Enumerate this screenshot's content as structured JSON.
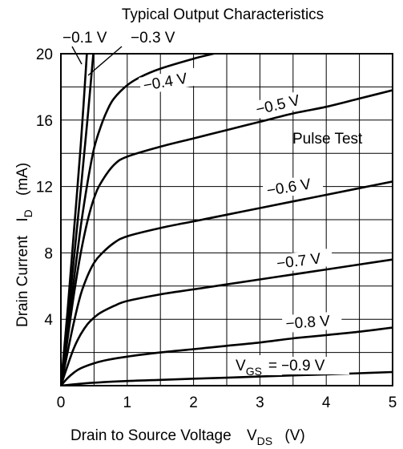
{
  "chart_data": {
    "type": "line",
    "title": "Typical Output Characteristics",
    "xlabel": "Drain to Source Voltage",
    "xlabel_symbol": "V",
    "xlabel_symbol_sub": "DS",
    "xlabel_unit": "(V)",
    "ylabel": "Drain Current",
    "ylabel_symbol": "I",
    "ylabel_symbol_sub": "D",
    "ylabel_unit": "(mA)",
    "xlim": [
      0,
      5
    ],
    "ylim": [
      0,
      20
    ],
    "x_ticks": [
      "0",
      "1",
      "2",
      "3",
      "4",
      "5"
    ],
    "y_ticks": [
      "4",
      "8",
      "12",
      "16",
      "20"
    ],
    "grid": true,
    "annotation": "Pulse Test",
    "gate_label_prefix": "V",
    "gate_label_sub": "GS",
    "gate_label_eq": "=",
    "series": [
      {
        "name": "−0.1 V",
        "x": [
          0,
          0.1,
          0.2,
          0.3,
          0.4
        ],
        "y": [
          0,
          4.5,
          9.5,
          14.5,
          20.5
        ]
      },
      {
        "name": "−0.3 V",
        "x": [
          0,
          0.1,
          0.2,
          0.3,
          0.4,
          0.5
        ],
        "y": [
          0,
          3.8,
          7.8,
          11.8,
          16.0,
          20.5
        ]
      },
      {
        "name": "−0.4 V",
        "x": [
          0,
          0.1,
          0.2,
          0.3,
          0.4,
          0.5,
          0.6,
          0.7,
          0.8,
          1.0,
          1.2,
          1.5,
          2.0,
          2.3
        ],
        "y": [
          0,
          3.2,
          6.5,
          9.6,
          12.2,
          14.3,
          15.6,
          16.6,
          17.3,
          18.1,
          18.6,
          19.1,
          19.7,
          20.0
        ]
      },
      {
        "name": "−0.5 V",
        "x": [
          0,
          0.1,
          0.2,
          0.3,
          0.4,
          0.5,
          0.6,
          0.8,
          1.0,
          1.5,
          2.0,
          2.5,
          3.0,
          3.5,
          4.0,
          4.5,
          5.0
        ],
        "y": [
          0,
          2.8,
          5.6,
          8.0,
          9.9,
          11.3,
          12.2,
          13.3,
          13.8,
          14.4,
          14.9,
          15.4,
          15.9,
          16.4,
          16.8,
          17.3,
          17.8
        ]
      },
      {
        "name": "−0.6 V",
        "x": [
          0,
          0.1,
          0.2,
          0.3,
          0.4,
          0.5,
          0.6,
          0.8,
          1.0,
          1.5,
          2.0,
          2.5,
          3.0,
          3.5,
          4.0,
          4.5,
          5.0
        ],
        "y": [
          0,
          2.0,
          3.9,
          5.5,
          6.6,
          7.4,
          7.9,
          8.6,
          9.0,
          9.5,
          9.9,
          10.3,
          10.7,
          11.1,
          11.5,
          11.9,
          12.3
        ]
      },
      {
        "name": "−0.7 V",
        "x": [
          0,
          0.1,
          0.2,
          0.3,
          0.4,
          0.5,
          0.6,
          0.8,
          1.0,
          1.5,
          2.0,
          2.5,
          3.0,
          3.5,
          4.0,
          4.5,
          5.0
        ],
        "y": [
          0,
          1.2,
          2.3,
          3.1,
          3.7,
          4.1,
          4.4,
          4.8,
          5.1,
          5.5,
          5.8,
          6.1,
          6.4,
          6.7,
          7.0,
          7.3,
          7.6
        ]
      },
      {
        "name": "−0.8 V",
        "x": [
          0,
          0.1,
          0.2,
          0.3,
          0.5,
          0.7,
          1.0,
          1.5,
          2.0,
          2.5,
          3.0,
          3.5,
          4.0,
          4.5,
          5.0
        ],
        "y": [
          0,
          0.45,
          0.8,
          1.05,
          1.35,
          1.55,
          1.75,
          2.0,
          2.2,
          2.4,
          2.6,
          2.85,
          3.05,
          3.25,
          3.5
        ]
      },
      {
        "name": "−0.9 V",
        "x": [
          0,
          0.2,
          0.5,
          1.0,
          1.5,
          2.0,
          2.5,
          3.0,
          3.5,
          4.0,
          4.5,
          5.0
        ],
        "y": [
          0,
          0.08,
          0.18,
          0.28,
          0.35,
          0.42,
          0.48,
          0.55,
          0.62,
          0.68,
          0.75,
          0.82
        ]
      }
    ]
  }
}
